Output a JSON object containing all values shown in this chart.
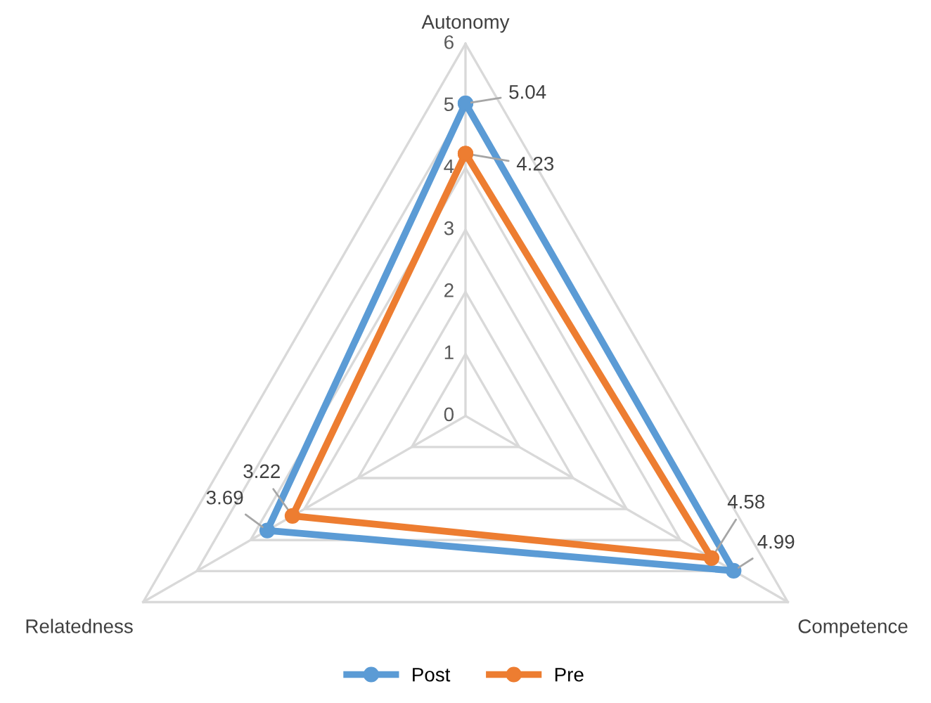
{
  "chart_data": {
    "type": "radar",
    "categories": [
      "Autonomy",
      "Competence",
      "Relatedness"
    ],
    "series": [
      {
        "name": "Post",
        "color": "#5b9bd5",
        "values": [
          5.04,
          4.99,
          3.69
        ]
      },
      {
        "name": "Pre",
        "color": "#ed7d31",
        "values": [
          4.23,
          4.58,
          3.22
        ]
      }
    ],
    "ylim": [
      0,
      6
    ],
    "yticks": [
      0,
      1,
      2,
      3,
      4,
      5,
      6
    ],
    "data_labels": true,
    "legend": "bottom",
    "marker": "circle",
    "line_style": "solid",
    "grid": true
  }
}
